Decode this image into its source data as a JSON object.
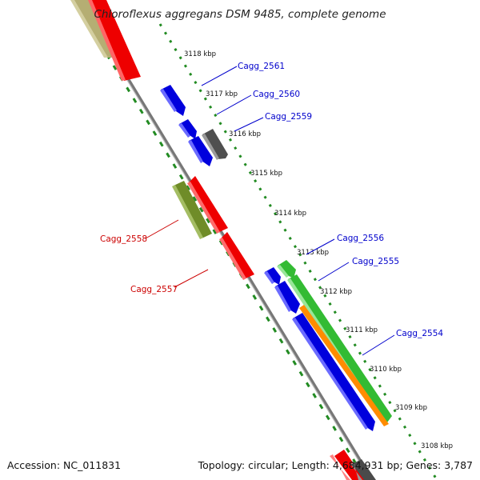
{
  "title": "Chloroflexus aggregans DSM 9485, complete genome",
  "footer": {
    "accession": "Accession: NC_011831",
    "summary": "Topology: circular; Length: 4,684,931 bp; Genes: 3,787"
  },
  "colors": {
    "backbone": "#7f7f7f",
    "forward_track": "#228b22",
    "reverse_track": "#228b22",
    "forward_label": "#0000cc",
    "reverse_label": "#cc0000",
    "gene_blue": "#0000ee",
    "gene_red": "#ff0000",
    "gene_green": "#3fcf3f",
    "gene_orange": "#ff8c00",
    "gene_olive": "#6b8e23",
    "gene_grey": "#5a5a5a",
    "gene_khaki": "#bdb76b"
  },
  "kbp_labels": [
    {
      "text": "3118 kbp"
    },
    {
      "text": "3117 kbp"
    },
    {
      "text": "3116 kbp"
    },
    {
      "text": "3115 kbp"
    },
    {
      "text": "3114 kbp"
    },
    {
      "text": "3113 kbp"
    },
    {
      "text": "3112 kbp"
    },
    {
      "text": "3111 kbp"
    },
    {
      "text": "3110 kbp"
    },
    {
      "text": "3109 kbp"
    },
    {
      "text": "3108 kbp"
    }
  ],
  "gene_labels": [
    {
      "text": "Cagg_2561",
      "strand": "forward"
    },
    {
      "text": "Cagg_2560",
      "strand": "forward"
    },
    {
      "text": "Cagg_2559",
      "strand": "forward"
    },
    {
      "text": "Cagg_2556",
      "strand": "forward"
    },
    {
      "text": "Cagg_2555",
      "strand": "forward"
    },
    {
      "text": "Cagg_2554",
      "strand": "forward"
    },
    {
      "text": "Cagg_2558",
      "strand": "reverse"
    },
    {
      "text": "Cagg_2557",
      "strand": "reverse"
    }
  ]
}
